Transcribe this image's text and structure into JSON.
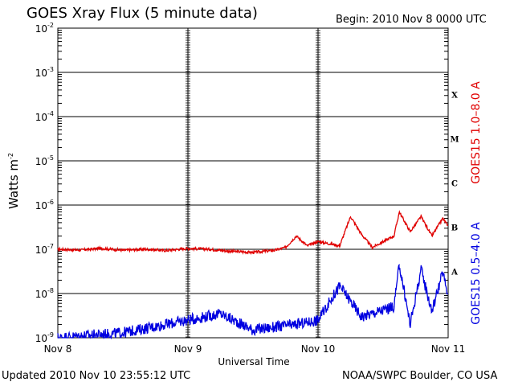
{
  "header": {
    "title": "GOES Xray Flux (5 minute data)",
    "begin": "Begin:  2010 Nov 8 0000 UTC"
  },
  "footer": {
    "updated": "Updated 2010 Nov 10 23:55:12 UTC",
    "credit": "NOAA/SWPC Boulder, CO USA"
  },
  "chart_data": {
    "type": "line",
    "title": "GOES Xray Flux (5 minute data)",
    "xlabel": "Universal Time",
    "ylabel": "Watts m^-2",
    "y_scale": "log",
    "ylim": [
      1e-09,
      0.01
    ],
    "xlim_days": [
      0,
      3
    ],
    "x_ticks": [
      "Nov 8",
      "Nov 9",
      "Nov 10",
      "Nov 11"
    ],
    "y_ticks": [
      {
        "base": "10",
        "exp": "-2"
      },
      {
        "base": "10",
        "exp": "-3"
      },
      {
        "base": "10",
        "exp": "-4"
      },
      {
        "base": "10",
        "exp": "-5"
      },
      {
        "base": "10",
        "exp": "-6"
      },
      {
        "base": "10",
        "exp": "-7"
      },
      {
        "base": "10",
        "exp": "-8"
      },
      {
        "base": "10",
        "exp": "-9"
      }
    ],
    "flare_classes": [
      "X",
      "M",
      "C",
      "B",
      "A"
    ],
    "grid": true,
    "series": [
      {
        "name": "GOES15 1.0–8.0 A",
        "color": "#e00000",
        "points": [
          [
            "Nov 8 00:00",
            1e-07
          ],
          [
            "Nov 8 04:00",
            9.6e-08
          ],
          [
            "Nov 8 08:00",
            1.05e-07
          ],
          [
            "Nov 8 12:00",
            9.5e-08
          ],
          [
            "Nov 8 16:00",
            1e-07
          ],
          [
            "Nov 8 20:00",
            9.4e-08
          ],
          [
            "Nov 9 00:00",
            1.05e-07
          ],
          [
            "Nov 9 04:00",
            1e-07
          ],
          [
            "Nov 9 08:00",
            9e-08
          ],
          [
            "Nov 9 12:00",
            8.5e-08
          ],
          [
            "Nov 9 16:00",
            9.5e-08
          ],
          [
            "Nov 9 18:00",
            1.1e-07
          ],
          [
            "Nov 9 20:00",
            2e-07
          ],
          [
            "Nov 9 22:00",
            1.2e-07
          ],
          [
            "Nov 10 00:00",
            1.5e-07
          ],
          [
            "Nov 10 04:00",
            1.2e-07
          ],
          [
            "Nov 10 06:00",
            5.5e-07
          ],
          [
            "Nov 10 08:00",
            2.2e-07
          ],
          [
            "Nov 10 10:00",
            1.1e-07
          ],
          [
            "Nov 10 14:00",
            2e-07
          ],
          [
            "Nov 10 15:00",
            7e-07
          ],
          [
            "Nov 10 17:00",
            2.5e-07
          ],
          [
            "Nov 10 19:00",
            5.5e-07
          ],
          [
            "Nov 10 21:00",
            2e-07
          ],
          [
            "Nov 10 23:00",
            5e-07
          ],
          [
            "Nov 10 23:55",
            3.5e-07
          ]
        ]
      },
      {
        "name": "GOES15 0.5–4.0 A",
        "color": "#0000e0",
        "points": [
          [
            "Nov 8 00:00",
            1e-09
          ],
          [
            "Nov 8 12:00",
            1.3e-09
          ],
          [
            "Nov 9 00:00",
            2.5e-09
          ],
          [
            "Nov 9 06:00",
            3.5e-09
          ],
          [
            "Nov 9 12:00",
            1.5e-09
          ],
          [
            "Nov 9 20:00",
            2e-09
          ],
          [
            "Nov 10 00:00",
            2.5e-09
          ],
          [
            "Nov 10 04:00",
            1.5e-08
          ],
          [
            "Nov 10 08:00",
            3e-09
          ],
          [
            "Nov 10 14:00",
            5e-09
          ],
          [
            "Nov 10 15:00",
            4.5e-08
          ],
          [
            "Nov 10 17:00",
            2e-09
          ],
          [
            "Nov 10 19:00",
            3.5e-08
          ],
          [
            "Nov 10 21:00",
            4e-09
          ],
          [
            "Nov 10 23:00",
            3e-08
          ],
          [
            "Nov 10 23:55",
            1e-08
          ]
        ]
      }
    ]
  }
}
